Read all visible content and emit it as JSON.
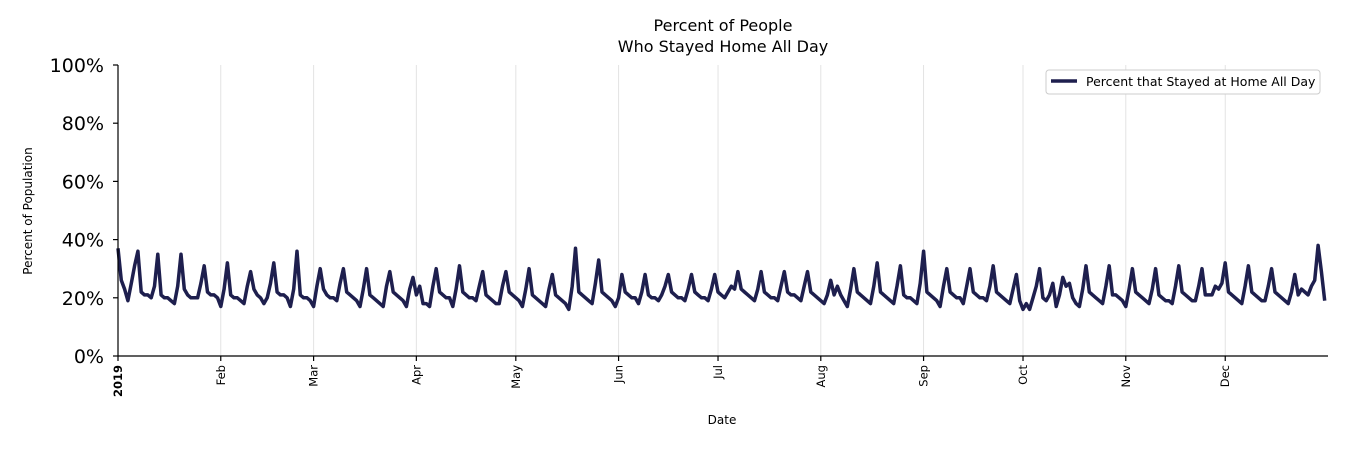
{
  "chart_data": {
    "type": "line",
    "title": "Percent of People",
    "subtitle": "Who Stayed Home All Day",
    "xlabel": "Date",
    "ylabel": "Percent of Population",
    "ylim": [
      0,
      100
    ],
    "yticks": [
      0,
      20,
      40,
      60,
      80,
      100
    ],
    "ytick_labels": [
      "0%",
      "20%",
      "40%",
      "60%",
      "80%",
      "100%"
    ],
    "x_start": "2019-01-01",
    "x_days": 365,
    "xticks": [
      {
        "label": "2019",
        "day": 0,
        "bold": true
      },
      {
        "label": "Feb",
        "day": 31
      },
      {
        "label": "Mar",
        "day": 59
      },
      {
        "label": "Apr",
        "day": 90
      },
      {
        "label": "May",
        "day": 120
      },
      {
        "label": "Jun",
        "day": 151
      },
      {
        "label": "Jul",
        "day": 181
      },
      {
        "label": "Aug",
        "day": 212
      },
      {
        "label": "Sep",
        "day": 243
      },
      {
        "label": "Oct",
        "day": 273
      },
      {
        "label": "Nov",
        "day": 304
      },
      {
        "label": "Dec",
        "day": 334
      }
    ],
    "grid": "vertical at month ticks",
    "legend_position": "top-right",
    "series": [
      {
        "name": "Percent that Stayed at Home All Day",
        "color": "#1e1f4e",
        "values": [
          37,
          26,
          23,
          19,
          25,
          31,
          36,
          22,
          21,
          21,
          20,
          24,
          35,
          21,
          20,
          20,
          19,
          18,
          24,
          35,
          23,
          21,
          20,
          20,
          20,
          25,
          31,
          22,
          21,
          21,
          20,
          17,
          23,
          32,
          21,
          20,
          20,
          19,
          18,
          24,
          29,
          23,
          21,
          20,
          18,
          20,
          25,
          32,
          22,
          21,
          21,
          20,
          17,
          23,
          36,
          21,
          20,
          20,
          19,
          17,
          24,
          30,
          23,
          21,
          20,
          20,
          19,
          25,
          30,
          22,
          21,
          20,
          19,
          17,
          23,
          30,
          21,
          20,
          19,
          18,
          17,
          24,
          29,
          22,
          21,
          20,
          19,
          17,
          23,
          27,
          21,
          24,
          18,
          18,
          17,
          24,
          30,
          22,
          21,
          20,
          20,
          17,
          23,
          31,
          22,
          21,
          20,
          20,
          19,
          24,
          29,
          21,
          20,
          19,
          18,
          18,
          24,
          29,
          22,
          21,
          20,
          19,
          17,
          23,
          30,
          21,
          20,
          19,
          18,
          17,
          23,
          28,
          21,
          20,
          19,
          18,
          16,
          24,
          37,
          22,
          21,
          20,
          19,
          18,
          25,
          33,
          22,
          21,
          20,
          19,
          17,
          20,
          28,
          22,
          21,
          20,
          20,
          18,
          22,
          28,
          21,
          20,
          20,
          19,
          21,
          24,
          28,
          22,
          21,
          20,
          20,
          19,
          23,
          28,
          22,
          21,
          20,
          20,
          19,
          23,
          28,
          22,
          21,
          20,
          22,
          24,
          23,
          29,
          23,
          22,
          21,
          20,
          19,
          23,
          29,
          22,
          21,
          20,
          20,
          19,
          24,
          29,
          22,
          21,
          21,
          20,
          19,
          24,
          29,
          22,
          21,
          20,
          19,
          18,
          21,
          26,
          21,
          24,
          21,
          19,
          17,
          23,
          30,
          22,
          21,
          20,
          19,
          18,
          24,
          32,
          22,
          21,
          20,
          19,
          18,
          24,
          31,
          21,
          20,
          20,
          19,
          18,
          25,
          36,
          22,
          21,
          20,
          19,
          17,
          24,
          30,
          22,
          21,
          20,
          20,
          18,
          24,
          30,
          22,
          21,
          20,
          20,
          19,
          24,
          31,
          22,
          21,
          20,
          19,
          18,
          23,
          28,
          19,
          16,
          18,
          16,
          20,
          24,
          30,
          20,
          19,
          21,
          25,
          17,
          21,
          27,
          24,
          25,
          20,
          18,
          17,
          23,
          31,
          22,
          21,
          20,
          19,
          18,
          24,
          31,
          21,
          21,
          20,
          19,
          17,
          23,
          30,
          22,
          21,
          20,
          19,
          18,
          23,
          30,
          21,
          20,
          19,
          19,
          18,
          24,
          31,
          22,
          21,
          20,
          19,
          19,
          24,
          30,
          21,
          21,
          21,
          24,
          23,
          25,
          32,
          22,
          21,
          20,
          19,
          18,
          24,
          31,
          22,
          21,
          20,
          19,
          19,
          24,
          30,
          22,
          21,
          20,
          19,
          18,
          22,
          28,
          21,
          23,
          22,
          21,
          24,
          26,
          38,
          29,
          19
        ]
      }
    ]
  }
}
